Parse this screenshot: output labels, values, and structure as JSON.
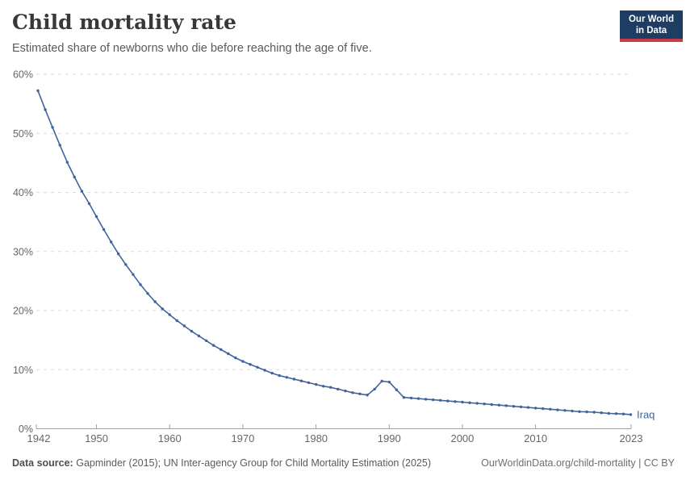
{
  "header": {
    "title": "Child mortality rate",
    "subtitle": "Estimated share of newborns who die before reaching the age of five."
  },
  "logo": {
    "line1": "Our World",
    "line2": "in Data",
    "bg_color": "#1d3d63",
    "bar_color": "#c83c49"
  },
  "chart_data": {
    "type": "line",
    "title": "Child mortality rate",
    "subtitle": "Estimated share of newborns who die before reaching the age of five.",
    "entity_label": "Iraq",
    "line_color": "#41639c",
    "grid": "horizontal-dashed",
    "legend_position": "end-of-line",
    "ylim": [
      0,
      60
    ],
    "yticks": [
      {
        "value": 0,
        "label": "0%"
      },
      {
        "value": 10,
        "label": "10%"
      },
      {
        "value": 20,
        "label": "20%"
      },
      {
        "value": 30,
        "label": "30%"
      },
      {
        "value": 40,
        "label": "40%"
      },
      {
        "value": 50,
        "label": "50%"
      },
      {
        "value": 60,
        "label": "60%"
      }
    ],
    "xticks": [
      {
        "value": 1942,
        "label": "1942"
      },
      {
        "value": 1950,
        "label": "1950"
      },
      {
        "value": 1960,
        "label": "1960"
      },
      {
        "value": 1970,
        "label": "1970"
      },
      {
        "value": 1980,
        "label": "1980"
      },
      {
        "value": 1990,
        "label": "1990"
      },
      {
        "value": 2000,
        "label": "2000"
      },
      {
        "value": 2010,
        "label": "2010"
      },
      {
        "value": 2023,
        "label": "2023"
      }
    ],
    "x": [
      1942,
      1943,
      1944,
      1945,
      1946,
      1947,
      1948,
      1949,
      1950,
      1951,
      1952,
      1953,
      1954,
      1955,
      1956,
      1957,
      1958,
      1959,
      1960,
      1961,
      1962,
      1963,
      1964,
      1965,
      1966,
      1967,
      1968,
      1969,
      1970,
      1971,
      1972,
      1973,
      1974,
      1975,
      1976,
      1977,
      1978,
      1979,
      1980,
      1981,
      1982,
      1983,
      1984,
      1985,
      1986,
      1987,
      1988,
      1989,
      1990,
      1991,
      1992,
      1993,
      1994,
      1995,
      1996,
      1997,
      1998,
      1999,
      2000,
      2001,
      2002,
      2003,
      2004,
      2005,
      2006,
      2007,
      2008,
      2009,
      2010,
      2011,
      2012,
      2013,
      2014,
      2015,
      2016,
      2017,
      2018,
      2019,
      2020,
      2021,
      2022,
      2023
    ],
    "series": [
      {
        "name": "Iraq",
        "unit": "%",
        "values": [
          57.2,
          54.0,
          51.0,
          48.0,
          45.1,
          42.6,
          40.2,
          38.1,
          35.9,
          33.7,
          31.6,
          29.6,
          27.8,
          26.1,
          24.4,
          22.9,
          21.5,
          20.3,
          19.3,
          18.3,
          17.4,
          16.5,
          15.7,
          14.9,
          14.1,
          13.4,
          12.7,
          12.0,
          11.4,
          10.9,
          10.4,
          9.9,
          9.4,
          9.0,
          8.7,
          8.4,
          8.1,
          7.8,
          7.5,
          7.2,
          7.0,
          6.7,
          6.4,
          6.1,
          5.9,
          5.7,
          6.7,
          8.05,
          7.9,
          6.6,
          5.3,
          5.2,
          5.1,
          5.0,
          4.9,
          4.8,
          4.7,
          4.6,
          4.5,
          4.4,
          4.3,
          4.2,
          4.1,
          4.0,
          3.9,
          3.8,
          3.7,
          3.6,
          3.5,
          3.4,
          3.3,
          3.2,
          3.1,
          3.0,
          2.9,
          2.85,
          2.8,
          2.7,
          2.6,
          2.55,
          2.5,
          2.4
        ]
      }
    ]
  },
  "footer": {
    "source_label": "Data source:",
    "source_text": "Gapminder (2015); UN Inter-agency Group for Child Mortality Estimation (2025)",
    "credit": "OurWorldinData.org/child-mortality | CC BY"
  }
}
